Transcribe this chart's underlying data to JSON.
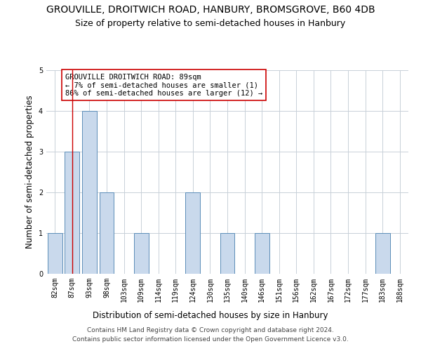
{
  "title": "GROUVILLE, DROITWICH ROAD, HANBURY, BROMSGROVE, B60 4DB",
  "subtitle": "Size of property relative to semi-detached houses in Hanbury",
  "xlabel": "Distribution of semi-detached houses by size in Hanbury",
  "ylabel": "Number of semi-detached properties",
  "categories": [
    "82sqm",
    "87sqm",
    "93sqm",
    "98sqm",
    "103sqm",
    "109sqm",
    "114sqm",
    "119sqm",
    "124sqm",
    "130sqm",
    "135sqm",
    "140sqm",
    "146sqm",
    "151sqm",
    "156sqm",
    "162sqm",
    "167sqm",
    "172sqm",
    "177sqm",
    "183sqm",
    "188sqm"
  ],
  "values": [
    1,
    3,
    4,
    2,
    0,
    1,
    0,
    0,
    2,
    0,
    1,
    0,
    1,
    0,
    0,
    0,
    0,
    0,
    0,
    1,
    0
  ],
  "bar_color": "#c9d9ec",
  "bar_edge_color": "#5b8db8",
  "highlight_x": "87sqm",
  "highlight_line_color": "#cc0000",
  "annotation_text": "GROUVILLE DROITWICH ROAD: 89sqm\n← 7% of semi-detached houses are smaller (1)\n86% of semi-detached houses are larger (12) →",
  "annotation_box_color": "#ffffff",
  "annotation_box_edge": "#cc0000",
  "ylim": [
    0,
    5
  ],
  "yticks": [
    0,
    1,
    2,
    3,
    4,
    5
  ],
  "footer": "Contains HM Land Registry data © Crown copyright and database right 2024.\nContains public sector information licensed under the Open Government Licence v3.0.",
  "background_color": "#ffffff",
  "grid_color": "#c8d0d8",
  "title_fontsize": 10,
  "subtitle_fontsize": 9,
  "label_fontsize": 8.5,
  "tick_fontsize": 7,
  "annotation_fontsize": 7.5,
  "footer_fontsize": 6.5
}
